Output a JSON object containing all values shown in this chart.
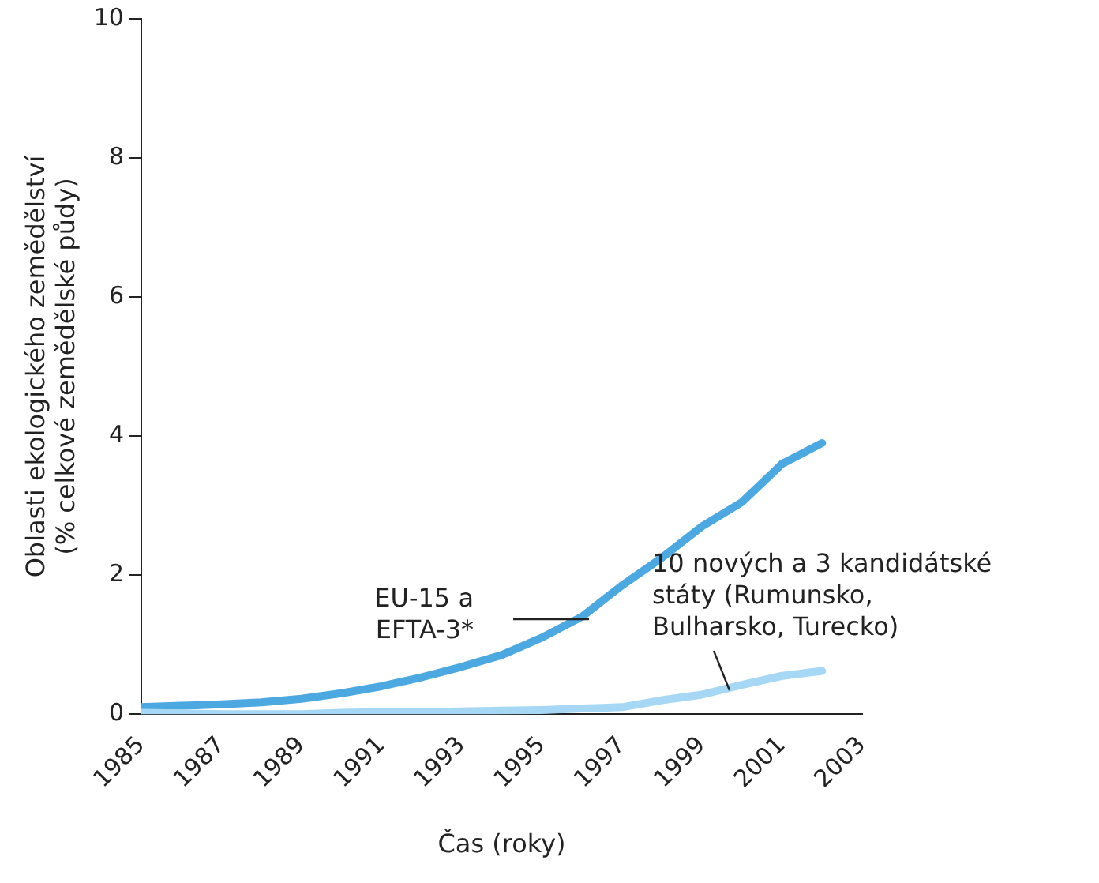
{
  "chart_data": {
    "type": "line",
    "xlabel": "Čas (roky)",
    "ylabel": "Oblasti ekologického zemědělství\n(% celkové zemědělské půdy)",
    "x": [
      1985,
      1986,
      1987,
      1988,
      1989,
      1990,
      1991,
      1992,
      1993,
      1994,
      1995,
      1996,
      1997,
      1998,
      1999,
      2000,
      2001,
      2002
    ],
    "series": [
      {
        "name": "EU-15 a\nEFTA-3*",
        "color": "#4ba8e0",
        "values": [
          0.1,
          0.12,
          0.14,
          0.17,
          0.22,
          0.3,
          0.4,
          0.53,
          0.68,
          0.85,
          1.1,
          1.4,
          1.85,
          2.25,
          2.7,
          3.05,
          3.6,
          3.9
        ]
      },
      {
        "name": "10 nových a 3 kandidátské\nstáty (Rumunsko,\nBulharsko, Turecko)",
        "color": "#a6d8f5",
        "values": [
          0.02,
          0.01,
          0,
          0,
          0,
          0.02,
          0.03,
          0.03,
          0.04,
          0.05,
          0.06,
          0.08,
          0.1,
          0.2,
          0.28,
          0.42,
          0.55,
          0.62
        ]
      }
    ],
    "xlim": [
      1985,
      2003
    ],
    "xticks": [
      1985,
      1987,
      1989,
      1991,
      1993,
      1995,
      1997,
      1999,
      2001,
      2003
    ],
    "ylim": [
      0,
      10
    ],
    "yticks": [
      0,
      2,
      4,
      6,
      8,
      10
    ],
    "grid": false,
    "legend": false
  }
}
